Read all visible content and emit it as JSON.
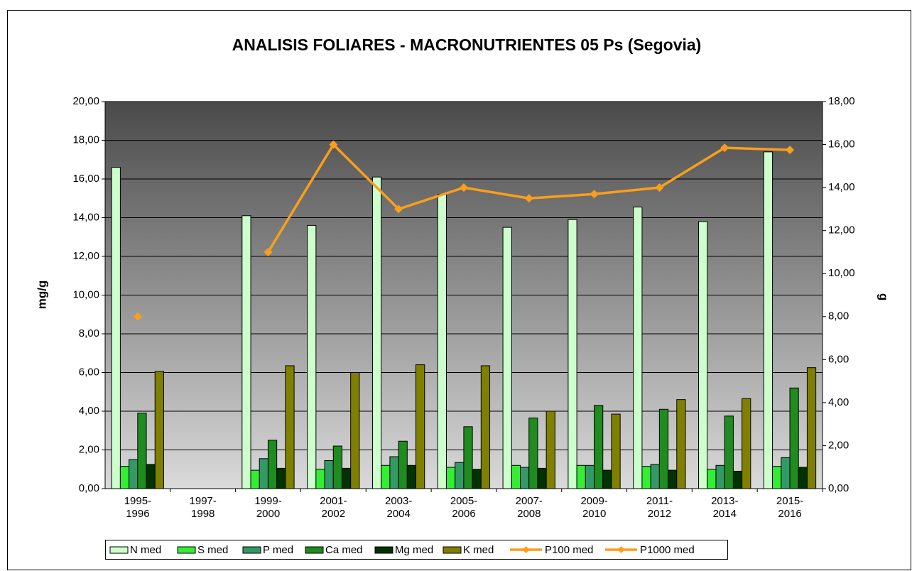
{
  "chart_data": {
    "type": "bar",
    "title": "ANALISIS FOLIARES - MACRONUTRIENTES 05 Ps (Segovia)",
    "y_label": "mg/g",
    "y2_label": "g",
    "categories": [
      "1995-1996",
      "1997-1998",
      "1999-2000",
      "2001-2002",
      "2003-2004",
      "2005-2006",
      "2007-2008",
      "2009-2010",
      "2011-2012",
      "2013-2014",
      "2015-2016"
    ],
    "series": [
      {
        "name": "N med",
        "type": "bar",
        "color": "#ccffcc",
        "values": [
          16.6,
          null,
          14.1,
          13.6,
          16.1,
          15.2,
          13.5,
          13.9,
          14.55,
          13.8,
          17.4
        ]
      },
      {
        "name": "S med",
        "type": "bar",
        "color": "#33ee33",
        "values": [
          1.15,
          null,
          0.95,
          1.0,
          1.2,
          1.1,
          1.2,
          1.2,
          1.15,
          1.0,
          1.15
        ]
      },
      {
        "name": "P med",
        "type": "bar",
        "color": "#339966",
        "values": [
          1.5,
          null,
          1.55,
          1.45,
          1.65,
          1.35,
          1.1,
          1.2,
          1.25,
          1.2,
          1.6
        ]
      },
      {
        "name": "Ca med",
        "type": "bar",
        "color": "#1e8c1e",
        "values": [
          3.9,
          null,
          2.5,
          2.2,
          2.45,
          3.2,
          3.65,
          4.3,
          4.1,
          3.75,
          5.2
        ]
      },
      {
        "name": "Mg med",
        "type": "bar",
        "color": "#003300",
        "values": [
          1.25,
          null,
          1.05,
          1.05,
          1.2,
          1.0,
          1.05,
          0.95,
          0.95,
          0.9,
          1.1
        ]
      },
      {
        "name": "K med",
        "type": "bar",
        "color": "#808000",
        "values": [
          6.05,
          null,
          6.35,
          6.0,
          6.4,
          6.35,
          4.0,
          3.85,
          4.6,
          4.65,
          6.25
        ]
      },
      {
        "name": "P100 med",
        "type": "line",
        "axis": "y2",
        "color": "#f99f1c",
        "values": [
          8.0,
          null,
          null,
          null,
          null,
          null,
          null,
          null,
          null,
          null,
          null
        ]
      },
      {
        "name": "P1000 med",
        "type": "line",
        "axis": "y2",
        "color": "#f99f1c",
        "values": [
          null,
          null,
          11.0,
          16.0,
          13.0,
          14.0,
          13.5,
          13.7,
          14.0,
          15.85,
          15.75
        ]
      }
    ],
    "ylim": [
      0,
      20
    ],
    "yticks": [
      {
        "value": 0,
        "label": "0,00"
      },
      {
        "value": 2,
        "label": "2,00"
      },
      {
        "value": 4,
        "label": "4,00"
      },
      {
        "value": 6,
        "label": "6,00"
      },
      {
        "value": 8,
        "label": "8,00"
      },
      {
        "value": 10,
        "label": "10,00"
      },
      {
        "value": 12,
        "label": "12,00"
      },
      {
        "value": 14,
        "label": "14,00"
      },
      {
        "value": 16,
        "label": "16,00"
      },
      {
        "value": 18,
        "label": "18,00"
      },
      {
        "value": 20,
        "label": "20,00"
      }
    ],
    "y2lim": [
      0,
      18
    ],
    "y2ticks": [
      {
        "value": 0,
        "label": "0,00"
      },
      {
        "value": 2,
        "label": "2,00"
      },
      {
        "value": 4,
        "label": "4,00"
      },
      {
        "value": 6,
        "label": "6,00"
      },
      {
        "value": 8,
        "label": "8,00"
      },
      {
        "value": 10,
        "label": "10,00"
      },
      {
        "value": 12,
        "label": "12,00"
      },
      {
        "value": 14,
        "label": "14,00"
      },
      {
        "value": 16,
        "label": "16,00"
      },
      {
        "value": 18,
        "label": "18,00"
      }
    ],
    "grid": true,
    "legend": "bottom"
  }
}
